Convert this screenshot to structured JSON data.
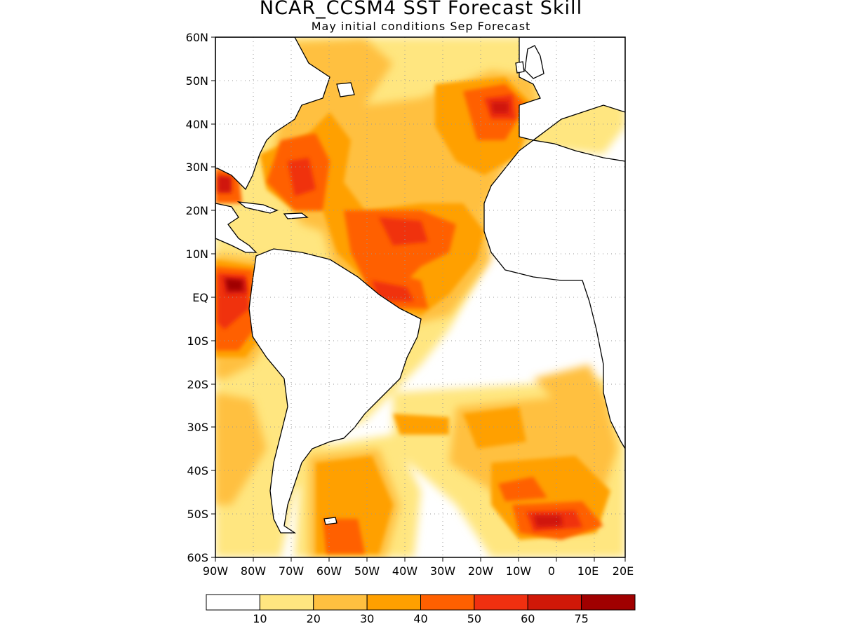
{
  "title": "NCAR_CCSM4 SST Forecast Skill",
  "subtitle": "May initial conditions  Sep Forecast",
  "axes": {
    "lat_ticks": [
      "60N",
      "50N",
      "40N",
      "30N",
      "20N",
      "10N",
      "EQ",
      "10S",
      "20S",
      "30S",
      "40S",
      "50S",
      "60S"
    ],
    "lon_ticks": [
      "90W",
      "80W",
      "70W",
      "60W",
      "50W",
      "40W",
      "30W",
      "20W",
      "10W",
      "0",
      "10E",
      "20E"
    ]
  },
  "colorbar": {
    "labels": [
      "10",
      "20",
      "30",
      "40",
      "50",
      "60",
      "75"
    ],
    "colors": [
      "#ffffff",
      "#ffe680",
      "#ffc040",
      "#ffa000",
      "#ff6000",
      "#f03010",
      "#d01808",
      "#a00000"
    ]
  },
  "map": {
    "land_color": "#ffffff",
    "coastline_color": "#000000",
    "grid": "dotted"
  }
}
